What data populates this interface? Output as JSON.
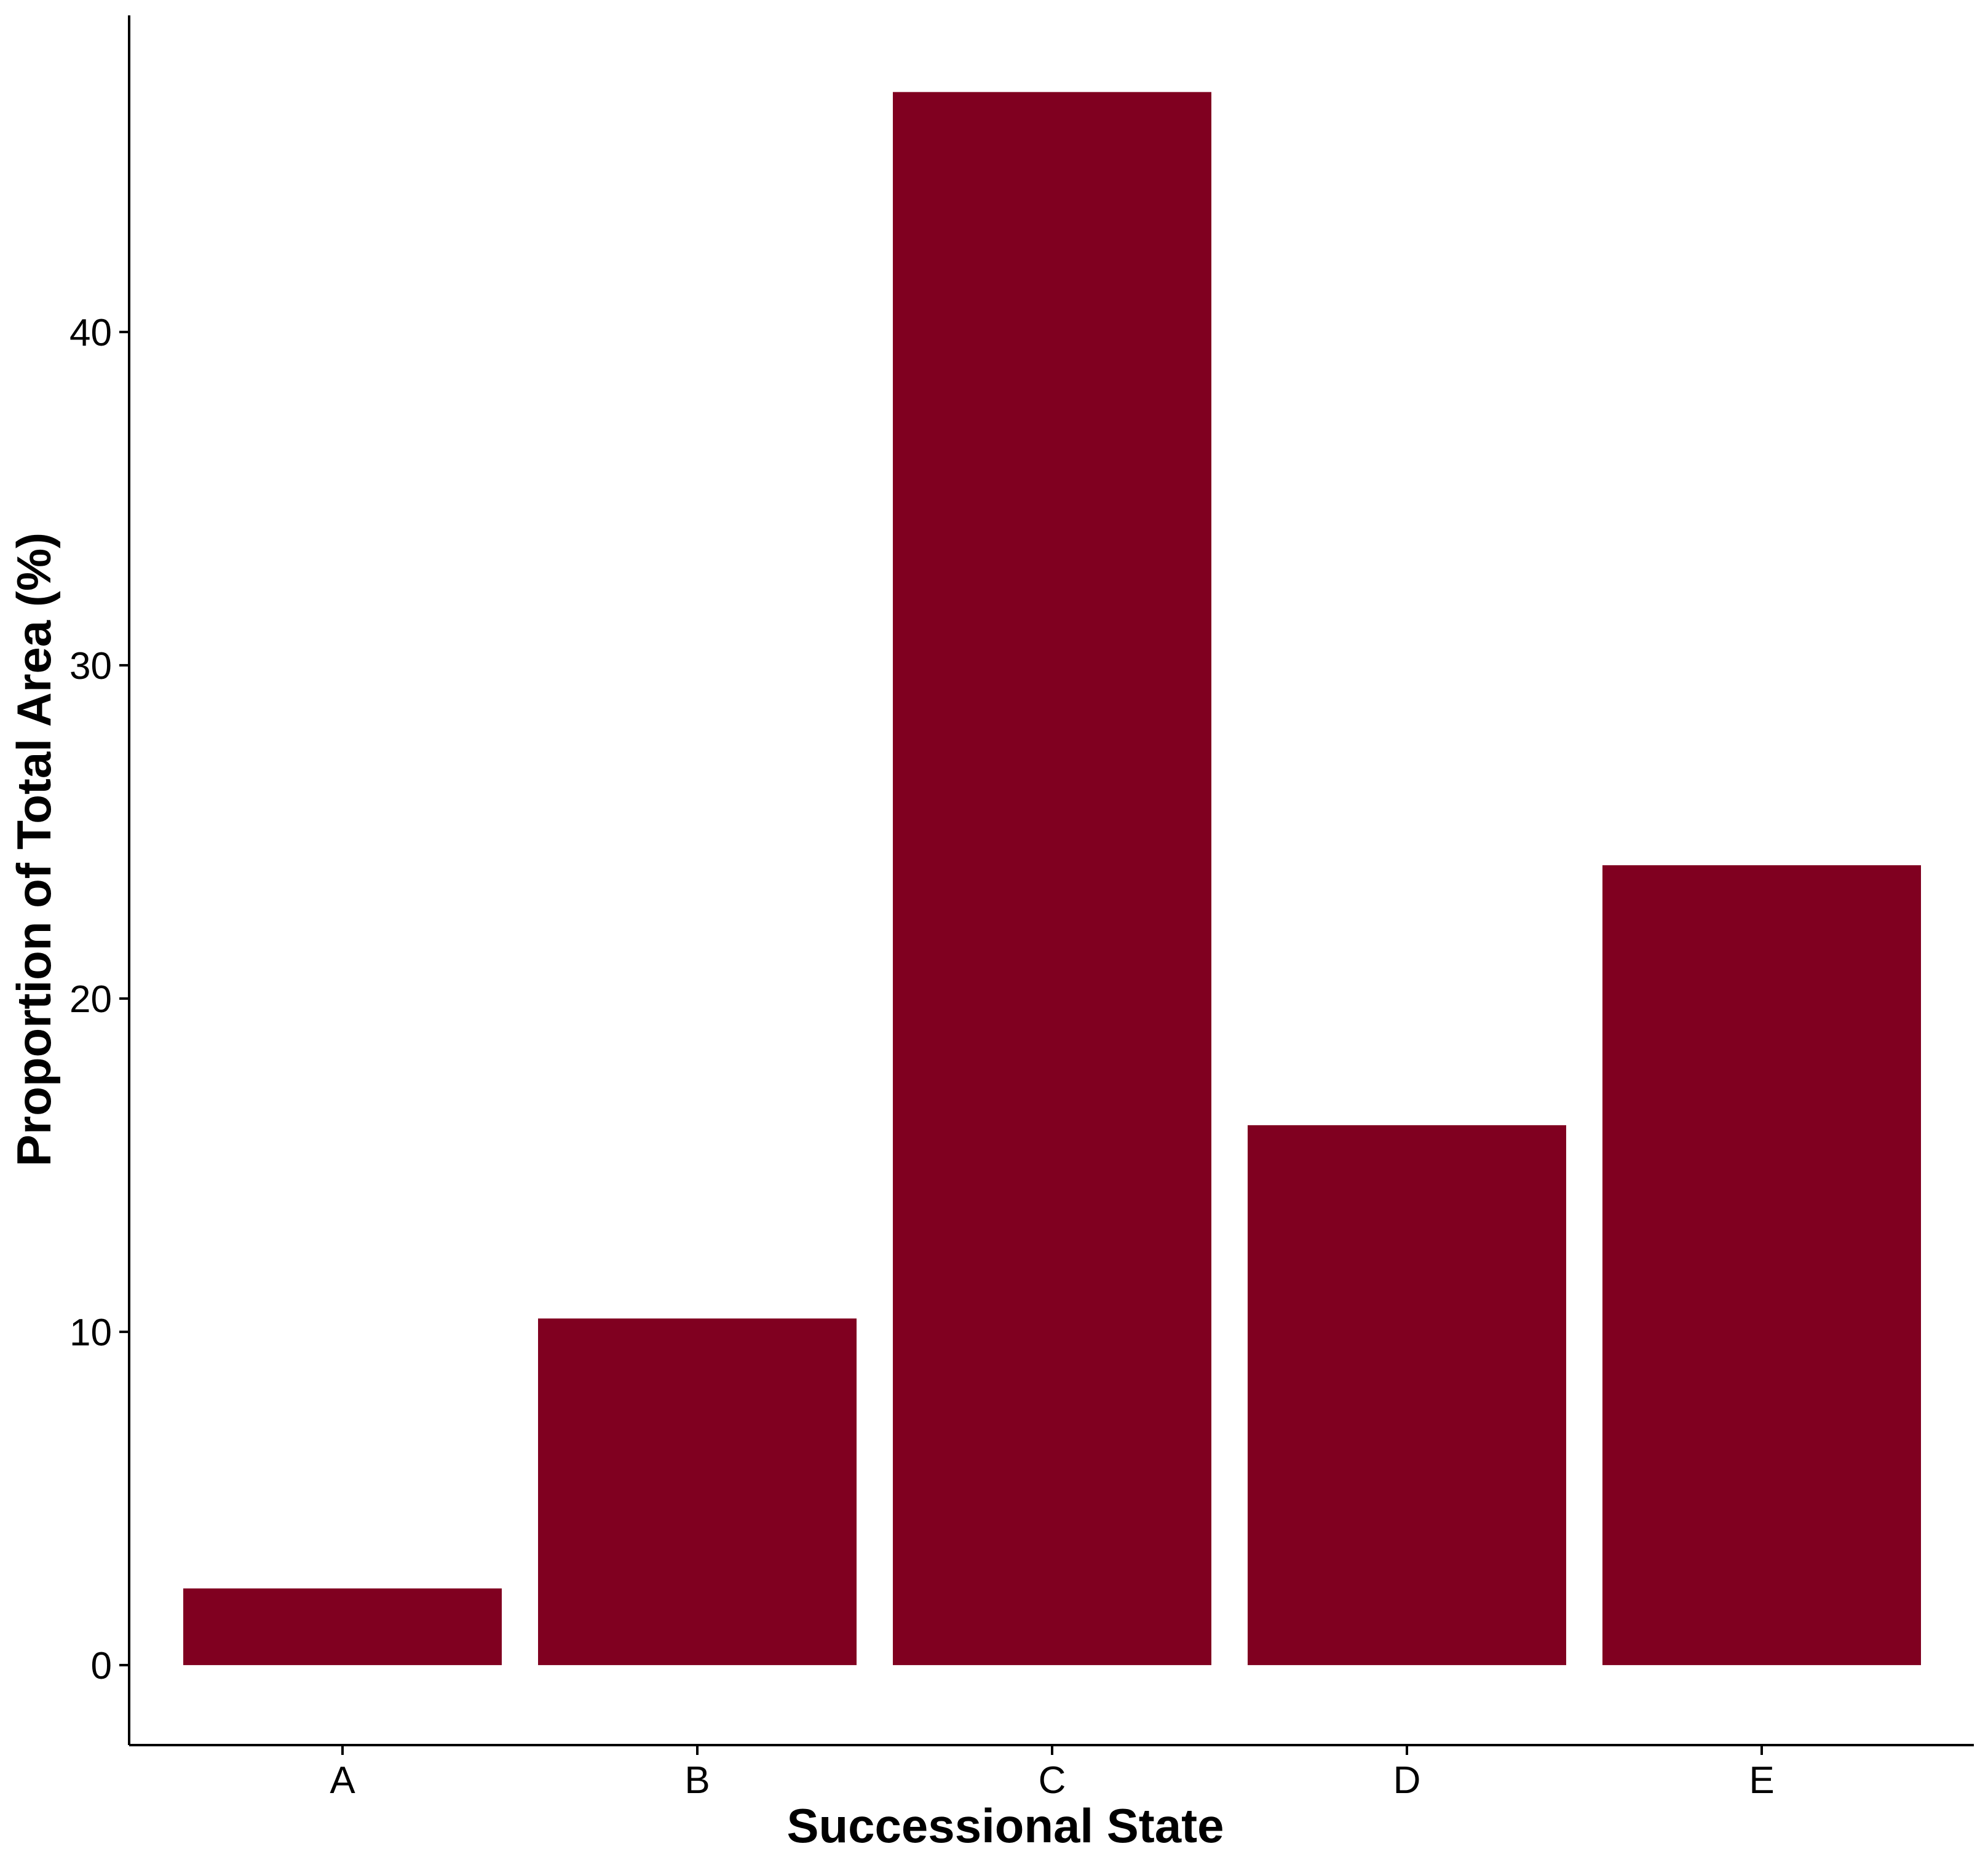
{
  "chart_data": {
    "type": "bar",
    "categories": [
      "A",
      "B",
      "C",
      "D",
      "E"
    ],
    "values": [
      2.3,
      10.4,
      47.2,
      16.2,
      24.0
    ],
    "xlabel": "Successional State",
    "ylabel": "Proportion of Total Area (%)",
    "ylim": [
      -2.4,
      49.5
    ],
    "yticks": [
      0,
      10,
      20,
      30,
      40
    ],
    "grid": false,
    "legend": "none",
    "bar_color": "#800020"
  }
}
